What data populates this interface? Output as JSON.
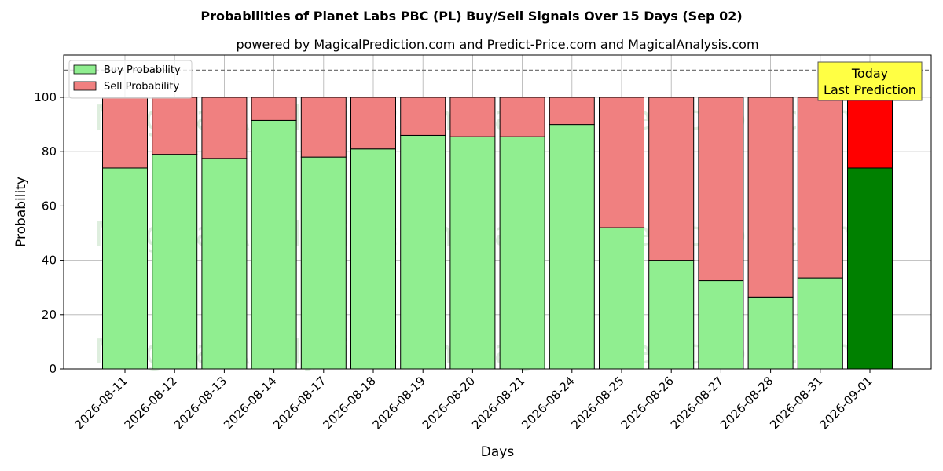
{
  "chart_data": {
    "type": "bar",
    "stacked": true,
    "title": "Probabilities of Planet Labs PBC (PL) Buy/Sell Signals Over 15 Days (Sep 02)",
    "subtitle": "powered by MagicalPrediction.com and Predict-Price.com and MagicalAnalysis.com",
    "xlabel": "Days",
    "ylabel": "Probability",
    "ylim": [
      0,
      115
    ],
    "yticks": [
      0,
      20,
      40,
      60,
      80,
      100
    ],
    "grid": true,
    "legend_position": "top-left",
    "reference_line": 110,
    "categories": [
      "2026-08-11",
      "2026-08-12",
      "2026-08-13",
      "2026-08-14",
      "2026-08-17",
      "2026-08-18",
      "2026-08-19",
      "2026-08-20",
      "2026-08-21",
      "2026-08-24",
      "2026-08-25",
      "2026-08-26",
      "2026-08-27",
      "2026-08-28",
      "2026-08-31",
      "2026-09-01"
    ],
    "series": [
      {
        "name": "Buy Probability",
        "color": "#90ee90",
        "highlight_color": "#008000",
        "values": [
          74,
          79,
          77.5,
          91.5,
          78,
          81,
          86,
          85.5,
          85.5,
          90,
          52,
          40,
          32.5,
          26.5,
          33.5,
          74
        ]
      },
      {
        "name": "Sell Probability",
        "color": "#f08080",
        "highlight_color": "#ff0000",
        "values": [
          26,
          21,
          22.5,
          8.5,
          22,
          19,
          14,
          14.5,
          14.5,
          10,
          48,
          60,
          67.5,
          73.5,
          66.5,
          26
        ]
      }
    ],
    "highlight_index": 15,
    "annotation": {
      "line1": "Today",
      "line2": "Last Prediction",
      "bg_color": "#ffff44"
    },
    "watermarks": [
      "MagicalAnalysis.com",
      "MagicalPrediction.com"
    ]
  }
}
